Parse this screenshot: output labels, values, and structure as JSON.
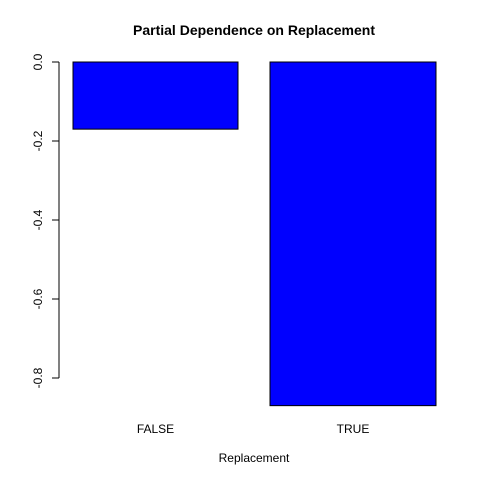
{
  "chart_data": {
    "type": "bar",
    "title": "Partial Dependence on Replacement",
    "xlabel": "Replacement",
    "ylabel": "",
    "categories": [
      "FALSE",
      "TRUE"
    ],
    "values": [
      -0.17,
      -0.87
    ],
    "ylim": [
      -0.8,
      0.0
    ],
    "yticks": [
      {
        "value": 0.0,
        "label": "0.0"
      },
      {
        "value": -0.2,
        "label": "-0.2"
      },
      {
        "value": -0.4,
        "label": "-0.4"
      },
      {
        "value": -0.6,
        "label": "-0.6"
      },
      {
        "value": -0.8,
        "label": "-0.8"
      }
    ],
    "bar_color": "#0000ff",
    "grid": false,
    "legend": "none"
  }
}
